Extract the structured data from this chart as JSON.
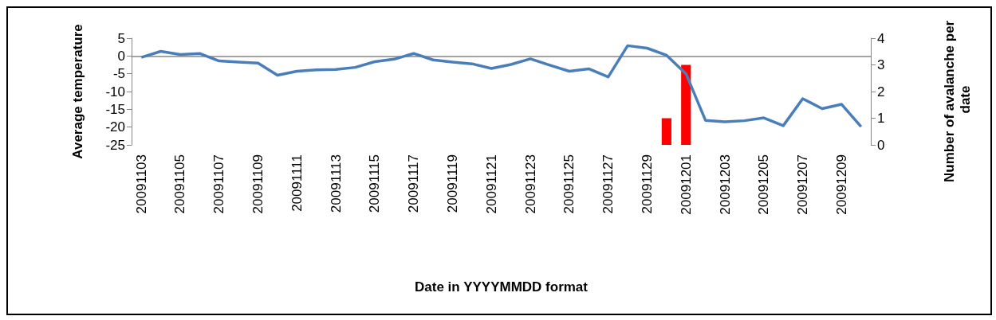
{
  "chart_data": {
    "type": "line",
    "xlabel": "Date in YYYYMMDD format",
    "ylabel": "Average temperature",
    "y2label": "Number of avalanche per date",
    "categories": [
      "20091103",
      null,
      "20091105",
      null,
      "20091107",
      null,
      "20091109",
      null,
      "20091111",
      null,
      "20091113",
      null,
      "20091115",
      null,
      "20091117",
      null,
      "20091119",
      null,
      "20091121",
      null,
      "20091123",
      null,
      "20091125",
      null,
      "20091127",
      null,
      "20091129",
      null,
      "20091201",
      null,
      "20091203",
      null,
      "20091205",
      null,
      "20091207",
      null,
      "20091209",
      null
    ],
    "series": [
      {
        "color": "#4a7ebb",
        "values": [
          -0.4,
          1.3,
          0.4,
          0.7,
          -1.4,
          -1.7,
          -2.0,
          -5.4,
          -4.3,
          -3.9,
          -3.8,
          -3.2,
          -1.6,
          -0.9,
          0.7,
          -1.1,
          -1.7,
          -2.2,
          -3.5,
          -2.4,
          -0.8,
          -2.6,
          -4.3,
          -3.6,
          -5.9,
          2.9,
          2.2,
          0.2,
          -5.0,
          -18.1,
          -18.5,
          -18.2,
          -17.4,
          -19.6,
          -12.0,
          -14.8,
          -13.6,
          -19.9
        ]
      },
      {
        "type": "bar",
        "axis": "y2",
        "color": "#ff0000",
        "values": [
          null,
          null,
          null,
          null,
          null,
          null,
          null,
          null,
          null,
          null,
          null,
          null,
          null,
          null,
          null,
          null,
          null,
          null,
          null,
          null,
          null,
          null,
          null,
          null,
          null,
          null,
          null,
          1,
          3,
          null,
          null,
          null,
          null,
          null,
          null,
          null,
          null,
          null
        ]
      }
    ],
    "ylim": [
      -25,
      5
    ],
    "yticks": [
      -25,
      -20,
      -15,
      -10,
      -5,
      0,
      5
    ],
    "y2lim": [
      0,
      4
    ],
    "y2ticks": [
      0,
      1,
      2,
      3,
      4
    ],
    "marker": "none"
  }
}
